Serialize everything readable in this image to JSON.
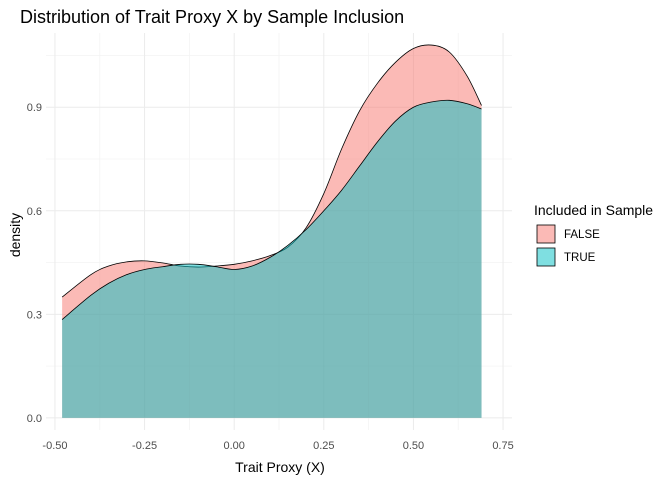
{
  "chart_data": {
    "type": "area",
    "title": "Distribution of Trait Proxy X by Sample Inclusion",
    "xlabel": "Trait Proxy (X)",
    "ylabel": "density",
    "xlim": [
      -0.525,
      0.775
    ],
    "ylim": [
      -0.035,
      1.115
    ],
    "x_ticks": [
      -0.5,
      -0.25,
      0.0,
      0.25,
      0.5,
      0.75
    ],
    "x_tick_labels": [
      "-0.50",
      "-0.25",
      "0.00",
      "0.25",
      "0.50",
      "0.75"
    ],
    "y_ticks": [
      0.0,
      0.3,
      0.6,
      0.9
    ],
    "y_tick_labels": [
      "0.0",
      "0.3",
      "0.6",
      "0.9"
    ],
    "grid": true,
    "legend": {
      "title": "Included in Sample",
      "position": "right"
    },
    "series": [
      {
        "name": "FALSE",
        "color": "#F8766D",
        "x": [
          -0.48,
          -0.4,
          -0.35,
          -0.3,
          -0.25,
          -0.2,
          -0.15,
          -0.1,
          -0.05,
          0.0,
          0.05,
          0.1,
          0.15,
          0.2,
          0.25,
          0.3,
          0.35,
          0.4,
          0.45,
          0.5,
          0.55,
          0.6,
          0.65,
          0.69
        ],
        "y": [
          0.35,
          0.415,
          0.44,
          0.452,
          0.455,
          0.449,
          0.44,
          0.437,
          0.44,
          0.445,
          0.455,
          0.47,
          0.495,
          0.55,
          0.65,
          0.78,
          0.89,
          0.97,
          1.03,
          1.07,
          1.08,
          1.06,
          0.99,
          0.905
        ]
      },
      {
        "name": "TRUE",
        "color": "#00BFC4",
        "x": [
          -0.48,
          -0.4,
          -0.35,
          -0.3,
          -0.25,
          -0.2,
          -0.15,
          -0.1,
          -0.05,
          0.0,
          0.05,
          0.1,
          0.15,
          0.2,
          0.25,
          0.3,
          0.35,
          0.4,
          0.45,
          0.5,
          0.55,
          0.6,
          0.65,
          0.69
        ],
        "y": [
          0.285,
          0.355,
          0.39,
          0.415,
          0.43,
          0.438,
          0.445,
          0.445,
          0.438,
          0.43,
          0.44,
          0.465,
          0.5,
          0.545,
          0.6,
          0.66,
          0.73,
          0.8,
          0.86,
          0.9,
          0.915,
          0.92,
          0.91,
          0.895
        ]
      }
    ]
  }
}
